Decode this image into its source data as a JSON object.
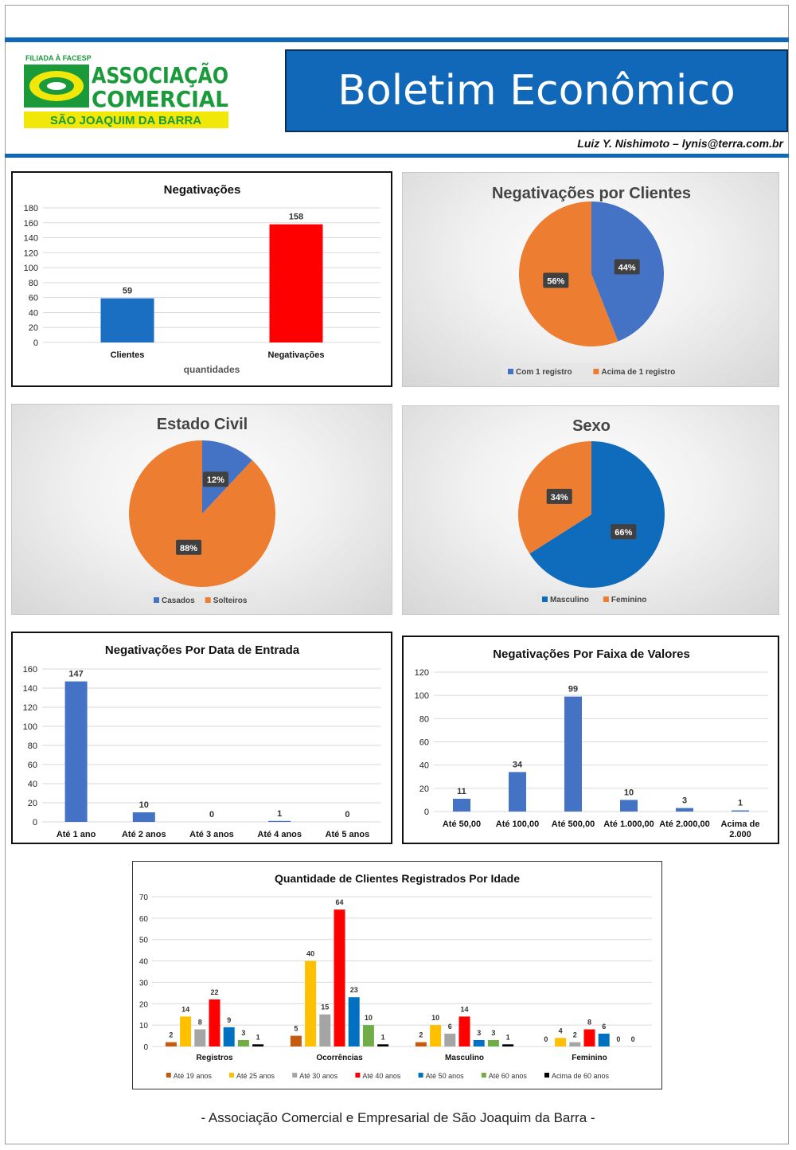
{
  "header": {
    "logo": {
      "tagline": "FILIADA À FACESP",
      "line1": "ASSOCIAÇÃO",
      "line2": "COMERCIAL",
      "line3": "SÃO JOAQUIM DA BARRA"
    },
    "title": "Boletim Econômico",
    "author": "Luiz Y. Nishimoto – lynis@terra.com.br"
  },
  "colors": {
    "brand_blue": "#1168b8",
    "logo_green": "#1b9a3c",
    "logo_yellow": "#f1e80a"
  },
  "chart_data": [
    {
      "id": "negativacoes",
      "type": "bar",
      "title": "Negativações",
      "xlabel": "quantidades",
      "ylabel": "",
      "categories": [
        "Clientes",
        "Negativações"
      ],
      "values": [
        59,
        158
      ],
      "colors": [
        "#1b6fc2",
        "#ff0000"
      ],
      "ylim": [
        0,
        180
      ],
      "yticks": [
        0,
        20,
        40,
        60,
        80,
        100,
        120,
        140,
        160,
        180
      ],
      "grid": true
    },
    {
      "id": "negativacoes-por-clientes",
      "type": "pie",
      "title": "Negativações por Clientes",
      "labels": [
        "Com 1 registro",
        "Acima de 1 registro"
      ],
      "values": [
        44,
        56
      ],
      "value_labels": [
        "44%",
        "56%"
      ],
      "colors": [
        "#4472c4",
        "#ed7d31"
      ],
      "legend": "bottom"
    },
    {
      "id": "estado-civil",
      "type": "pie",
      "title": "Estado Civil",
      "labels": [
        "Casados",
        "Solteiros"
      ],
      "values": [
        12,
        88
      ],
      "value_labels": [
        "12%",
        "88%"
      ],
      "colors": [
        "#4472c4",
        "#ed7d31"
      ],
      "legend": "bottom"
    },
    {
      "id": "sexo",
      "type": "pie",
      "title": "Sexo",
      "labels": [
        "Masculino",
        "Feminino"
      ],
      "values": [
        66,
        34
      ],
      "value_labels": [
        "66%",
        "34%"
      ],
      "colors": [
        "#0f6cbd",
        "#ed7d31"
      ],
      "legend": "bottom"
    },
    {
      "id": "data-entrada",
      "type": "bar",
      "title": "Negativações Por Data de Entrada",
      "categories": [
        "Até 1 ano",
        "Até 2 anos",
        "Até 3 anos",
        "Até 4 anos",
        "Até 5 anos"
      ],
      "values": [
        147,
        10,
        0,
        1,
        0
      ],
      "colors": [
        "#4472c4"
      ],
      "ylim": [
        0,
        160
      ],
      "yticks": [
        0,
        20,
        40,
        60,
        80,
        100,
        120,
        140,
        160
      ],
      "grid": true
    },
    {
      "id": "faixa-valores",
      "type": "bar",
      "title": "Negativações Por Faixa de Valores",
      "categories": [
        "Até 50,00",
        "Até 100,00",
        "Até 500,00",
        "Até 1.000,00",
        "Até 2.000,00",
        "Acima de 2.000"
      ],
      "values": [
        11,
        34,
        99,
        10,
        3,
        1
      ],
      "colors": [
        "#4472c4"
      ],
      "ylim": [
        0,
        120
      ],
      "yticks": [
        0,
        20,
        40,
        60,
        80,
        100,
        120
      ],
      "grid": true
    },
    {
      "id": "idade",
      "type": "bar",
      "title": "Quantidade de Clientes Registrados Por Idade",
      "categories": [
        "Registros",
        "Ocorrências",
        "Masculino",
        "Feminino"
      ],
      "ylim": [
        0,
        70
      ],
      "yticks": [
        0,
        10,
        20,
        30,
        40,
        50,
        60,
        70
      ],
      "grid": true,
      "legend": "bottom",
      "series": [
        {
          "name": "Até 19 anos",
          "color": "#c55a11",
          "values": [
            2,
            5,
            2,
            0
          ]
        },
        {
          "name": "Até 25 anos",
          "color": "#ffc000",
          "values": [
            14,
            40,
            10,
            4
          ]
        },
        {
          "name": "Até 30 anos",
          "color": "#a5a5a5",
          "values": [
            8,
            15,
            6,
            2
          ]
        },
        {
          "name": "Até 40 anos",
          "color": "#ff0000",
          "values": [
            22,
            64,
            14,
            8
          ]
        },
        {
          "name": "Até 50 anos",
          "color": "#0070c0",
          "values": [
            9,
            23,
            3,
            6
          ]
        },
        {
          "name": "Até 60 anos",
          "color": "#70ad47",
          "values": [
            3,
            10,
            3,
            0
          ]
        },
        {
          "name": "Acima de 60 anos",
          "color": "#000000",
          "values": [
            1,
            1,
            1,
            0
          ]
        }
      ]
    }
  ],
  "footer": "- Associação Comercial e Empresarial de São Joaquim da Barra -"
}
